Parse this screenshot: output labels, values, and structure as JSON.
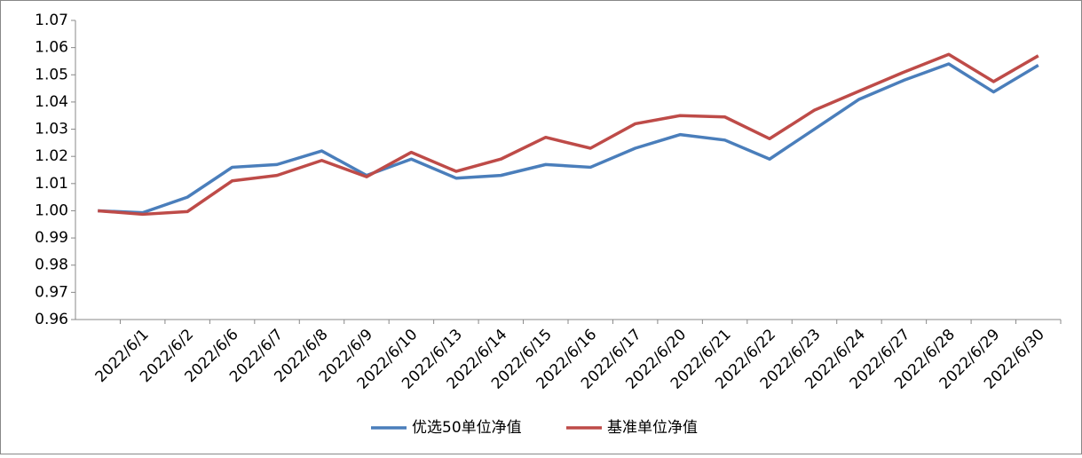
{
  "chart_data": {
    "type": "line",
    "categories": [
      null,
      "2022/6/1",
      "2022/6/2",
      "2022/6/6",
      "2022/6/7",
      "2022/6/8",
      "2022/6/9",
      "2022/6/10",
      "2022/6/13",
      "2022/6/14",
      "2022/6/15",
      "2022/6/16",
      "2022/6/17",
      "2022/6/20",
      "2022/6/21",
      "2022/6/22",
      "2022/6/23",
      "2022/6/24",
      "2022/6/27",
      "2022/6/28",
      "2022/6/29",
      "2022/6/30"
    ],
    "series": [
      {
        "name": "优选50单位净值",
        "color": "#4a7ebb",
        "values": [
          1.0,
          0.9993,
          1.005,
          1.016,
          1.017,
          1.022,
          1.013,
          1.019,
          1.012,
          1.013,
          1.017,
          1.016,
          1.023,
          1.028,
          1.026,
          1.019,
          1.03,
          1.041,
          1.048,
          1.054,
          1.0437,
          1.0535
        ]
      },
      {
        "name": "基准单位净值",
        "color": "#be4b48",
        "values": [
          1.0,
          0.9987,
          0.9997,
          1.011,
          1.013,
          1.0185,
          1.0125,
          1.0215,
          1.0145,
          1.019,
          1.027,
          1.023,
          1.032,
          1.035,
          1.0345,
          1.0265,
          1.037,
          1.044,
          1.051,
          1.0575,
          1.0475,
          1.057
        ]
      }
    ],
    "ylim": [
      0.96,
      1.07
    ],
    "yticks": [
      0.96,
      0.97,
      0.98,
      0.99,
      {
        "value": 1.0,
        "label": "1.00"
      },
      1.01,
      1.02,
      1.03,
      1.04,
      1.05,
      1.06,
      1.07
    ],
    "legend": "bottom"
  }
}
